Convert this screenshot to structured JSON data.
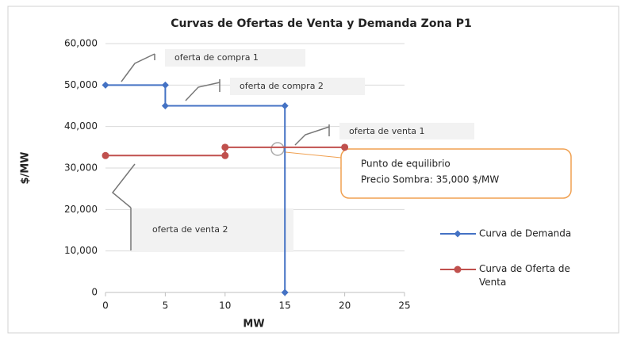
{
  "chart_data": {
    "type": "line",
    "title": "Curvas de Ofertas de Venta y Demanda Zona P1",
    "xlabel": "MW",
    "ylabel": "$/MW",
    "xlim": [
      0,
      25
    ],
    "ylim": [
      0,
      60000
    ],
    "xticks": [
      0,
      5,
      10,
      15,
      20,
      25
    ],
    "yticks": [
      {
        "value": 0,
        "label": "0"
      },
      {
        "value": 10000,
        "label": "10,000"
      },
      {
        "value": 20000,
        "label": "20,000"
      },
      {
        "value": 30000,
        "label": "30,000"
      },
      {
        "value": 40000,
        "label": "40,000"
      },
      {
        "value": 50000,
        "label": "50,000"
      },
      {
        "value": 60000,
        "label": "60,000"
      }
    ],
    "grid": true,
    "legend": "right",
    "series": [
      {
        "name": "Curva de Demanda",
        "color": "#4472c4",
        "marker": "diamond",
        "x": [
          0,
          5,
          5,
          15,
          15
        ],
        "values": [
          50000,
          50000,
          45000,
          45000,
          0
        ]
      },
      {
        "name": "Curva de Oferta de Venta",
        "color": "#c0504d",
        "marker": "circle",
        "x": [
          0,
          10,
          10,
          20
        ],
        "values": [
          33000,
          33000,
          35000,
          35000
        ]
      }
    ],
    "annotations": [
      "oferta de compra 1",
      "oferta de compra 2",
      "oferta de venta 1",
      "oferta de venta 2"
    ],
    "callout": [
      "Punto de equilibrio",
      "Precio Sombra: 35,000 $/MW"
    ]
  }
}
